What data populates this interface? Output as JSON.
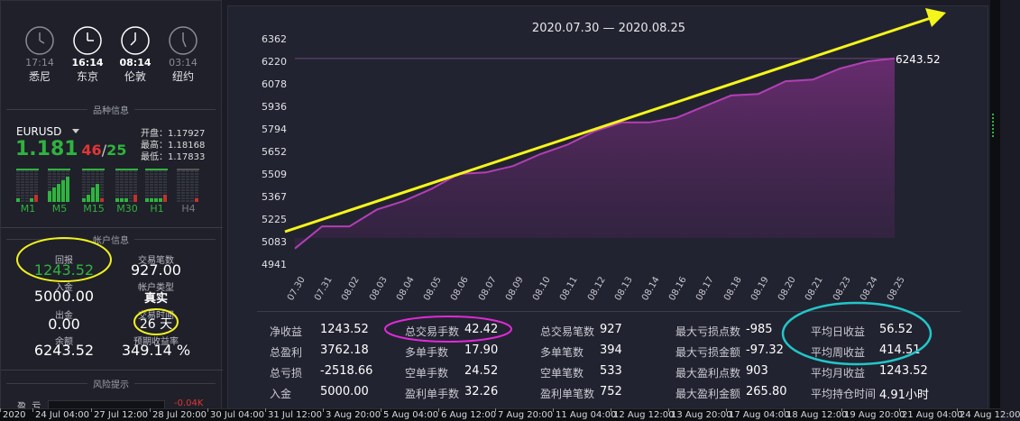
{
  "clocks": [
    {
      "time": "17:14",
      "city": "悉尼",
      "state": "dim"
    },
    {
      "time": "16:14",
      "city": "东京",
      "state": "active"
    },
    {
      "time": "08:14",
      "city": "伦敦",
      "state": "active"
    },
    {
      "time": "03:14",
      "city": "纽约",
      "state": "dim"
    }
  ],
  "symbol_section": {
    "title": "品种信息",
    "symbol": "EURUSD",
    "price_main": "1.181",
    "price_hi": "46",
    "price_sep": "/",
    "price_lo": "25",
    "open": "开盘：1.17927",
    "high": "最高：1.18168",
    "low": "最低：1.17833",
    "timeframes": [
      "M1",
      "M5",
      "M15",
      "M30",
      "H1",
      "H4"
    ]
  },
  "account_section": {
    "title": "帐户信息",
    "return_label": "回报",
    "return_value": "1243.52",
    "trades_label": "交易笔数",
    "trades_value": "927.00",
    "deposit_label": "入金",
    "deposit_value": "5000.00",
    "account_type_label": "帐户类型",
    "account_type_value": "真实",
    "withdraw_label": "出金",
    "withdraw_value": "0.00",
    "duration_label": "交易时间",
    "duration_value": "26 天",
    "balance_label": "余额",
    "balance_value": "6243.52",
    "return_rate_label": "预期收益率",
    "return_rate_value": "349.14 %"
  },
  "risk_section": {
    "title": "风险提示",
    "row_label": "盈  亏",
    "row_value": "-0.04K"
  },
  "chart_data": {
    "type": "area",
    "title": "2020.07.30 — 2020.08.25",
    "categories": [
      "07.30",
      "07.31",
      "08.02",
      "08.03",
      "08.04",
      "08.05",
      "08.06",
      "08.07",
      "08.09",
      "08.10",
      "08.11",
      "08.12",
      "08.13",
      "08.14",
      "08.16",
      "08.17",
      "08.18",
      "08.19",
      "08.20",
      "08.21",
      "08.23",
      "08.24",
      "08.25"
    ],
    "values": [
      5045,
      5185,
      5185,
      5290,
      5345,
      5420,
      5515,
      5525,
      5565,
      5640,
      5700,
      5785,
      5840,
      5840,
      5870,
      5940,
      6010,
      6020,
      6100,
      6110,
      6180,
      6225,
      6243.52
    ],
    "y_ticks": [
      "6362",
      "6220",
      "6078",
      "5936",
      "5794",
      "5652",
      "5509",
      "5367",
      "5225",
      "5083",
      "4941"
    ],
    "ylim": [
      4941,
      6362
    ],
    "last_label": "6243.52",
    "series_color": "#b23fb5",
    "arrow_color": "#f5f51a"
  },
  "stats": [
    [
      {
        "label": "净收益",
        "value": "1243.52"
      },
      {
        "label": "总盈利",
        "value": "3762.18"
      },
      {
        "label": "总亏损",
        "value": "-2518.66"
      },
      {
        "label": "入金",
        "value": "5000.00"
      }
    ],
    [
      {
        "label": "总交易手数",
        "value": "42.42"
      },
      {
        "label": "多单手数",
        "value": "17.90"
      },
      {
        "label": "空单手数",
        "value": "24.52"
      },
      {
        "label": "盈利单手数",
        "value": "32.26"
      }
    ],
    [
      {
        "label": "总交易笔数",
        "value": "927"
      },
      {
        "label": "多单笔数",
        "value": "394"
      },
      {
        "label": "空单笔数",
        "value": "533"
      },
      {
        "label": "盈利单笔数",
        "value": "752"
      }
    ],
    [
      {
        "label": "最大亏损点数",
        "value": "-985"
      },
      {
        "label": "最大亏损金额",
        "value": "-97.32"
      },
      {
        "label": "最大盈利点数",
        "value": "903"
      },
      {
        "label": "最大盈利金额",
        "value": "265.80"
      }
    ],
    [
      {
        "label": "平均日收益",
        "value": "56.52"
      },
      {
        "label": "平均周收益",
        "value": "414.51"
      },
      {
        "label": "平均月收益",
        "value": "1243.52"
      },
      {
        "label": "平均持仓时间",
        "value": "4.91小时"
      }
    ]
  ],
  "timeline": [
    "2020",
    "24 Jul 04:00",
    "27 Jul 12:00",
    "28 Jul 20:00",
    "30 Jul 04:00",
    "31 Jul 12:00",
    "3 Aug 20:00",
    "5 Aug 04:00",
    "6 Aug 12:00",
    "7 Aug 20:00",
    "11 Aug 04:00",
    "12 Aug 12:00",
    "13 Aug 20:00",
    "17 Aug 04:00",
    "18 Aug 12:00",
    "19 Aug 20:00",
    "21 Aug 04:00",
    "24 Aug 12:00"
  ],
  "highlight_colors": {
    "yellow": "#f1f11c",
    "magenta": "#e02ad9",
    "cyan": "#22c6c9"
  }
}
